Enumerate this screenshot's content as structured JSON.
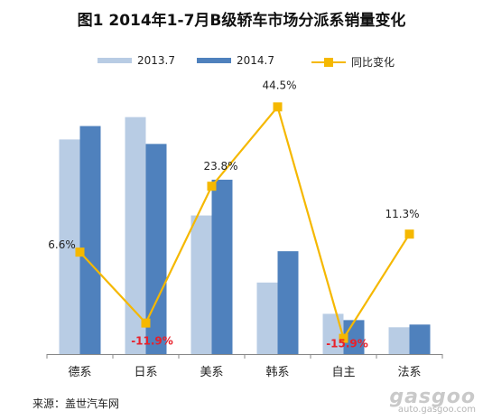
{
  "chart_data": {
    "type": "bar",
    "title": "图1  2014年1-7月B级轿车市场分派系销量变化",
    "categories": [
      "德系",
      "日系",
      "美系",
      "韩系",
      "自主",
      "法系"
    ],
    "series": [
      {
        "name": "2013.7",
        "type": "bar",
        "values": [
          240,
          265,
          155,
          80,
          45,
          30
        ]
      },
      {
        "name": "2014.7",
        "type": "bar",
        "values": [
          255,
          235,
          195,
          115,
          38,
          33
        ]
      },
      {
        "name": "同比变化",
        "type": "line",
        "axis": "right",
        "unit": "%",
        "values": [
          6.6,
          -11.9,
          23.8,
          44.5,
          -15.9,
          11.3
        ]
      }
    ],
    "data_labels": [
      "6.6%",
      "-11.9%",
      "23.8%",
      "44.5%",
      "-15.9%",
      "11.3%"
    ],
    "ylim": [
      0,
      300
    ],
    "ylim_right": [
      -20,
      50
    ],
    "grid": false,
    "legend_position": "top"
  },
  "colors": {
    "bar_2013": "#b8cce4",
    "bar_2014": "#4f81bd",
    "line": "#f5b800",
    "negative_label": "#e8202a",
    "axis": "#888888"
  },
  "source": "来源：盖世汽车网",
  "watermark": {
    "brand": "gasgoo",
    "url": "auto.gasgoo.com"
  }
}
